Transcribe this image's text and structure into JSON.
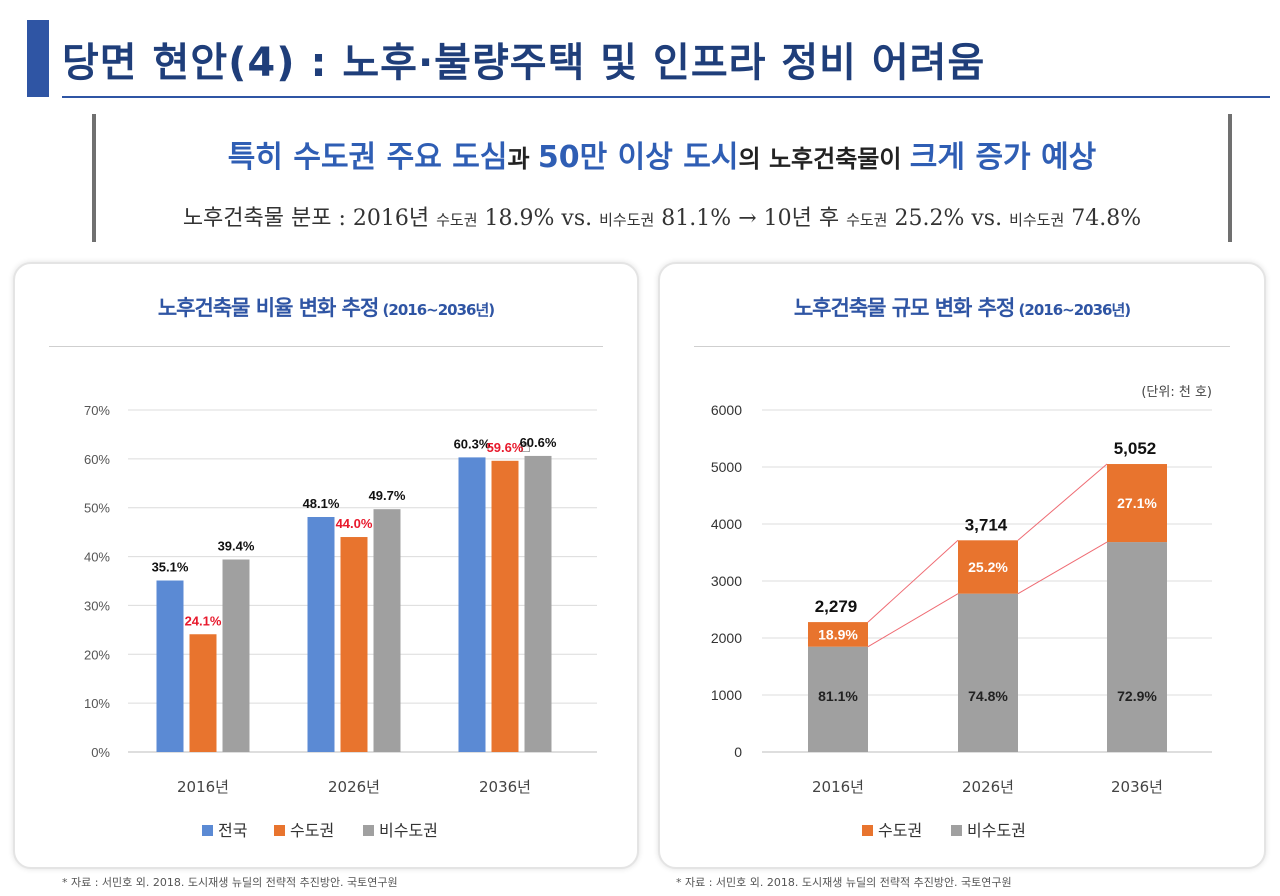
{
  "page": {
    "title": "당면 현안(4) : 노후·불량주택 및 인프라 정비 어려움"
  },
  "headline": {
    "part1": "특히 수도권 주요 도심",
    "part2": "과 ",
    "part3": "50만 이상 도시",
    "part4": "의 노후건축물이 ",
    "part5": "크게 증가 예상"
  },
  "subline": {
    "lead": "노후건축물 분포 : 2016년 ",
    "a_label": "수도권",
    "a_value": " 18.9% vs. ",
    "b_label": "비수도권",
    "b_value": " 81.1% → 10년 후 ",
    "c_label": "수도권",
    "c_value": " 25.2% vs. ",
    "d_label": "비수도권",
    "d_value": " 74.8%"
  },
  "left_card": {
    "title": "노후건축물 비율 변화 추정",
    "title_sub": " (2016~2036년)",
    "source": "* 자료 : 서민호 외. 2018. 도시재생 뉴딜의 전략적 추진방안. 국토연구원"
  },
  "right_card": {
    "title": "노후건축물 규모 변화 추정",
    "title_sub": " (2016~2036년)",
    "source": "* 자료 : 서민호 외. 2018. 도시재생 뉴딜의 전략적 추진방안. 국토연구원"
  },
  "colors": {
    "blue": "#5b8ad4",
    "orange": "#e8742e",
    "gray": "#a0a0a0",
    "highlight": "#e8192c",
    "title_navy": "#1f3e7a",
    "accent_blue": "#2f5eb4"
  },
  "chart_data": [
    {
      "type": "bar",
      "categories": [
        "2016년",
        "2026년",
        "2036년"
      ],
      "series": [
        {
          "name": "전국",
          "values": [
            35.1,
            48.1,
            60.3
          ],
          "labels": [
            "35.1%",
            "48.1%",
            "60.3%"
          ],
          "color": "#5b8ad4"
        },
        {
          "name": "수도권",
          "values": [
            24.1,
            44.0,
            59.6
          ],
          "labels": [
            "24.1%",
            "44.0%",
            "59.6%"
          ],
          "color": "#e8742e"
        },
        {
          "name": "비수도권",
          "values": [
            39.4,
            49.7,
            60.6
          ],
          "labels": [
            "39.4%",
            "49.7%",
            "60.6%"
          ],
          "color": "#a0a0a0"
        }
      ],
      "ylim": [
        0,
        70
      ],
      "yticks": [
        "0%",
        "10%",
        "20%",
        "30%",
        "40%",
        "50%",
        "60%",
        "70%"
      ],
      "grid": true,
      "legend": "bottom"
    },
    {
      "type": "bar",
      "stacked": true,
      "categories": [
        "2016년",
        "2026년",
        "2036년"
      ],
      "totals": [
        2279,
        3714,
        5052
      ],
      "total_labels": [
        "2,279",
        "3,714",
        "5,052"
      ],
      "series": [
        {
          "name": "비수도권",
          "values": [
            1848,
            2778,
            3683
          ],
          "labels": [
            "81.1%",
            "74.8%",
            "72.9%"
          ],
          "color": "#a0a0a0"
        },
        {
          "name": "수도권",
          "values": [
            431,
            936,
            1369
          ],
          "labels": [
            "18.9%",
            "25.2%",
            "27.1%"
          ],
          "color": "#e8742e"
        }
      ],
      "ylim": [
        0,
        6000
      ],
      "yticks": [
        "0",
        "1000",
        "2000",
        "3000",
        "4000",
        "5000",
        "6000"
      ],
      "unit": "(단위: 천 호)",
      "grid": true,
      "legend": "bottom"
    }
  ]
}
